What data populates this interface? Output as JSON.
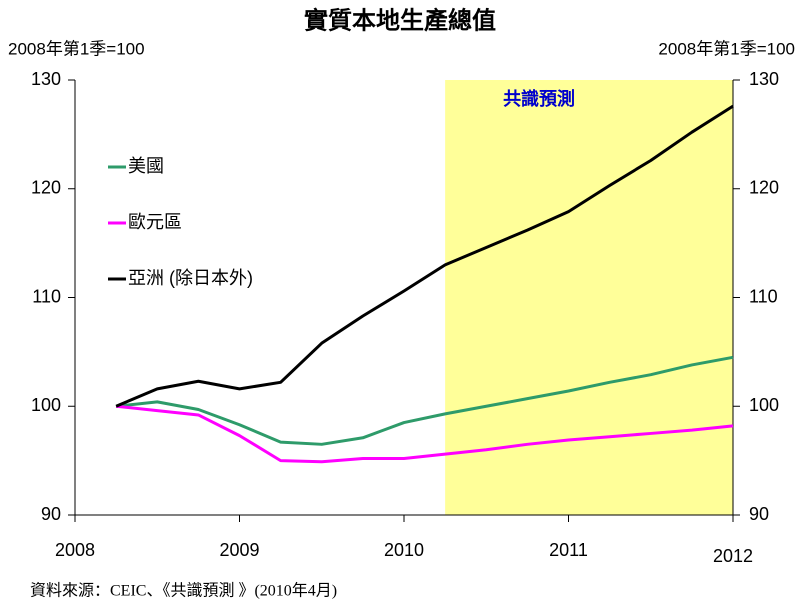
{
  "chart_data": {
    "type": "line",
    "title": "實質本地生產總值",
    "ylabel": "2008年第1季=100",
    "y2label": "2008年第1季=100",
    "source": "資料來源：CEIC、《共識預測 》(2010年4月)",
    "shade": {
      "label": "共識預測",
      "range": [
        2010.25,
        2012
      ],
      "color": "#ffff99"
    },
    "x": [
      2008.25,
      2008.5,
      2008.75,
      2009,
      2009.25,
      2009.5,
      2009.75,
      2010,
      2010.25,
      2010.5,
      2010.75,
      2011,
      2011.25,
      2011.5,
      2011.75,
      2012
    ],
    "series": [
      {
        "name": "美國",
        "color": "#2e9b6a",
        "values": [
          100,
          100.4,
          99.7,
          98.3,
          96.7,
          96.5,
          97.1,
          98.5,
          99.3,
          100.0,
          100.7,
          101.4,
          102.2,
          102.9,
          103.8,
          104.5
        ]
      },
      {
        "name": "歐元區",
        "color": "#ff00ff",
        "values": [
          100,
          99.6,
          99.2,
          97.3,
          95.0,
          94.9,
          95.2,
          95.2,
          95.6,
          96.0,
          96.5,
          96.9,
          97.2,
          97.5,
          97.8,
          98.2
        ]
      },
      {
        "name": "亞洲 (除日本外)",
        "color": "#000000",
        "values": [
          100,
          101.6,
          102.3,
          101.6,
          102.2,
          105.8,
          108.3,
          110.6,
          113.0,
          114.6,
          116.2,
          117.9,
          120.3,
          122.6,
          125.2,
          127.6
        ]
      }
    ],
    "xlim": [
      2008,
      2012
    ],
    "xticks": [
      2008,
      2009,
      2010,
      2011,
      2012
    ],
    "ylim": [
      90,
      130
    ],
    "yticks": [
      90,
      100,
      110,
      120,
      130
    ],
    "y2lim": [
      90,
      130
    ],
    "y2ticks": [
      90,
      100,
      110,
      120,
      130
    ]
  }
}
